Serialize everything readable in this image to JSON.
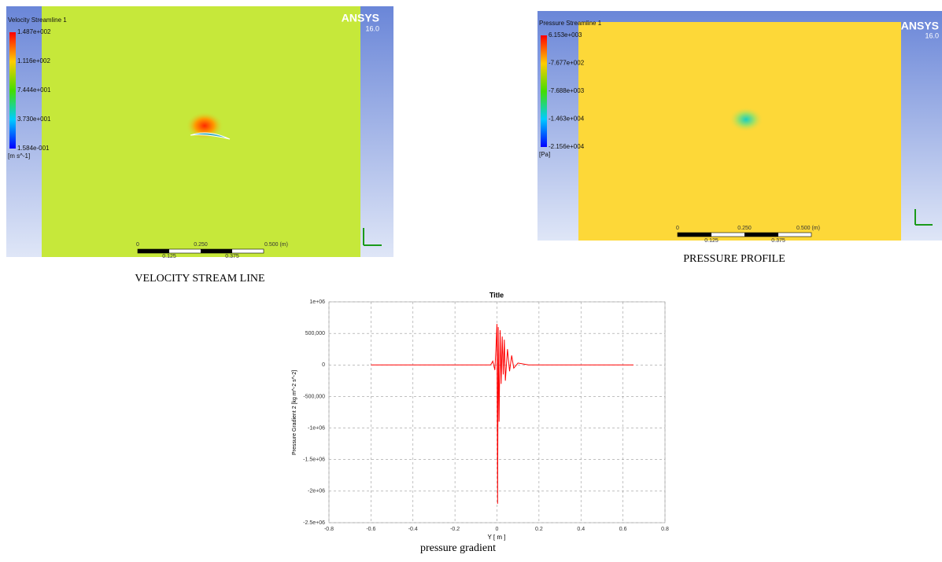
{
  "velocity": {
    "legend_title": "Velocity Streamline 1",
    "legend_labels": [
      "1.487e+002",
      "1.116e+002",
      "7.444e+001",
      "3.730e+001",
      "1.584e-001"
    ],
    "unit": "[m s^-1]",
    "brand": "ANSYS",
    "version": "16.0",
    "scale_top": [
      "0",
      "0.250",
      "0.500 (m)"
    ],
    "scale_bottom": [
      "0.125",
      "0.375"
    ],
    "caption": "VELOCITY STREAM LINE"
  },
  "pressure": {
    "legend_title": "Pressure Streamline 1",
    "legend_labels": [
      "6.153e+003",
      "-7.677e+002",
      "-7.688e+003",
      "-1.463e+004",
      "-2.156e+004"
    ],
    "unit": "[Pa]",
    "brand": "ANSYS",
    "version": "16.0",
    "scale_top": [
      "0",
      "0.250",
      "0.500 (m)"
    ],
    "scale_bottom": [
      "0.125",
      "0.375"
    ],
    "caption": "PRESSURE PROFILE"
  },
  "chart_data": {
    "type": "line",
    "title": "Title",
    "x_label": "Y [ m ]",
    "y_label": "Pressure Gradient 2 [kg m^-2 s^-2]",
    "caption": "pressure gradient",
    "xlim": [
      -0.8,
      0.8
    ],
    "ylim": [
      -2500000,
      1000000
    ],
    "xticks": [
      -0.8,
      -0.6,
      -0.4,
      -0.2,
      0,
      0.2,
      0.4,
      0.6,
      0.8
    ],
    "yticks": [
      {
        "value": 1000000,
        "label": "1e+06"
      },
      {
        "value": 500000,
        "label": "500,000"
      },
      0,
      {
        "value": -500000,
        "label": "-500,000"
      },
      {
        "value": -1000000,
        "label": "-1e+06"
      },
      {
        "value": -1500000,
        "label": "-1.5e+06"
      },
      {
        "value": -2000000,
        "label": "-2e+06"
      },
      {
        "value": -2500000,
        "label": "-2.5e+06"
      }
    ],
    "grid": true,
    "series": [
      {
        "color": "#ff0000",
        "x": [
          -0.6,
          -0.03,
          -0.02,
          -0.01,
          -0.005,
          0,
          0.003,
          0.006,
          0.01,
          0.015,
          0.02,
          0.025,
          0.03,
          0.035,
          0.04,
          0.05,
          0.06,
          0.07,
          0.08,
          0.1,
          0.15,
          0.65
        ],
        "values": [
          0,
          0,
          60000,
          -80000,
          250000,
          650000,
          -2200000,
          600000,
          -900000,
          550000,
          -300000,
          450000,
          -150000,
          400000,
          -250000,
          250000,
          -100000,
          150000,
          -50000,
          30000,
          0,
          0
        ]
      }
    ]
  }
}
